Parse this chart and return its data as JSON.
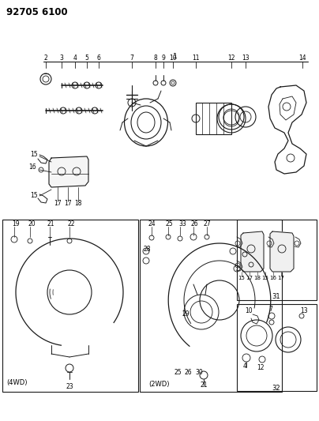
{
  "title_code": "92705 6100",
  "bg_color": "#ffffff",
  "line_color": "#1a1a1a",
  "fig_width": 4.04,
  "fig_height": 5.33,
  "dpi": 100
}
